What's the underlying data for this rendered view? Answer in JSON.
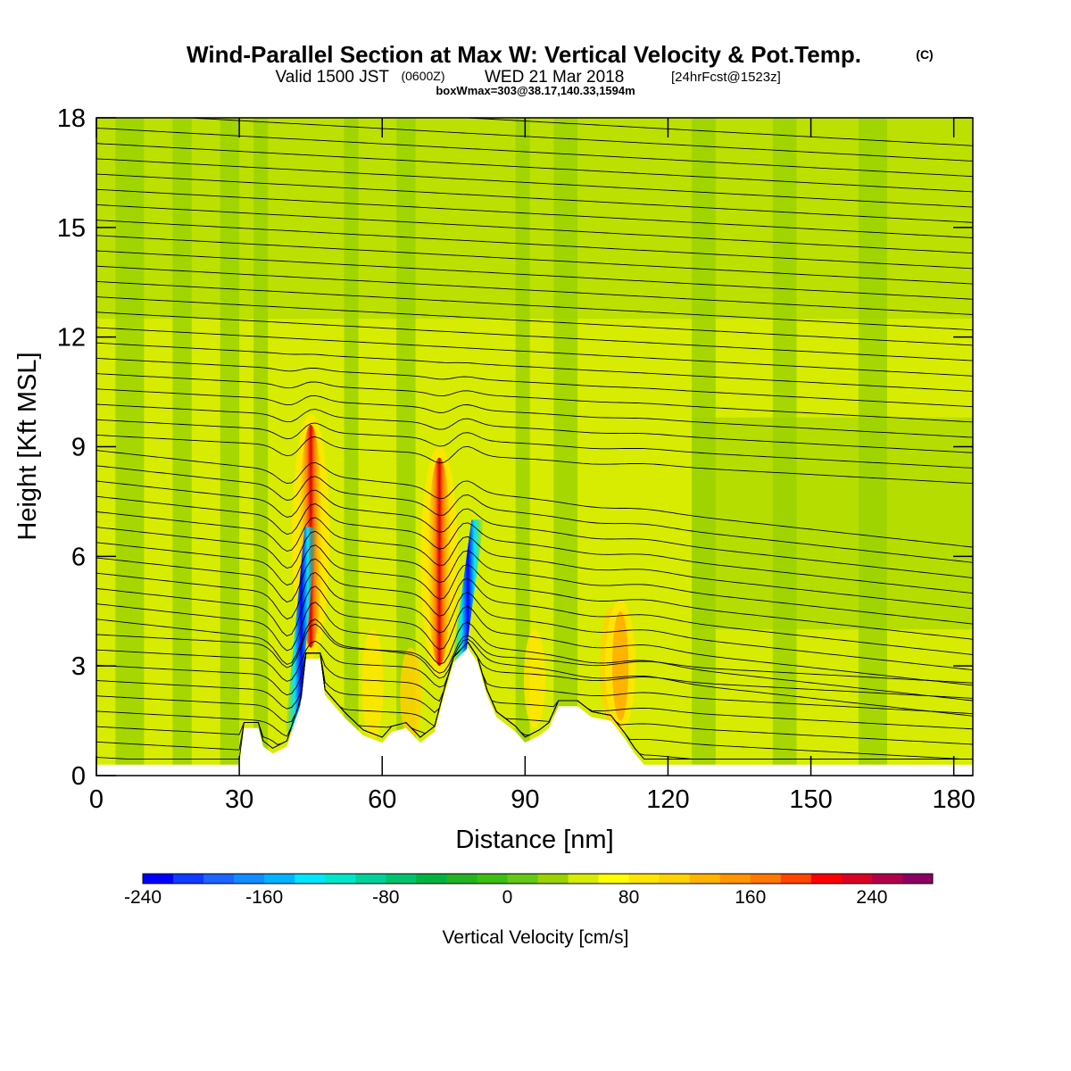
{
  "header": {
    "title": "Wind-Parallel Section at Max W: Vertical Velocity & Pot.Temp.",
    "copyright": "(C)",
    "valid_prefix": "Valid 1500 JST",
    "valid_utc": "(0600Z)",
    "valid_date": "WED 21 Mar 2018",
    "forecast_info": "[24hrFcst@1523z]",
    "box_info": "boxWmax=303@38.17,140.33,1594m"
  },
  "chart_data": {
    "type": "heatmap",
    "title": "Wind-Parallel Section at Max W: Vertical Velocity & Pot.Temp.",
    "xlabel": "Distance [nm]",
    "ylabel": "Height [Kft MSL]",
    "xlim": [
      0,
      184
    ],
    "ylim": [
      0,
      18
    ],
    "xticks": [
      0,
      30,
      60,
      90,
      120,
      150,
      180
    ],
    "yticks": [
      0,
      3,
      6,
      9,
      12,
      15,
      18
    ],
    "colorbar": {
      "label": "Vertical Velocity [cm/s]",
      "min": -240,
      "max": 280,
      "step": 20,
      "tick_values": [
        -240,
        -160,
        -80,
        0,
        80,
        160,
        240
      ],
      "colors": [
        "#0000ff",
        "#0f3cff",
        "#1e64ff",
        "#148cff",
        "#00b4ff",
        "#00e6ff",
        "#00e6c8",
        "#00d29b",
        "#00c36e",
        "#00b441",
        "#23b423",
        "#3cbe14",
        "#64c814",
        "#9bd200",
        "#d7ec00",
        "#ffff00",
        "#ffe600",
        "#ffd200",
        "#ffb400",
        "#ff9600",
        "#ff7800",
        "#ff4600",
        "#ff0000",
        "#dc0023",
        "#b4004b",
        "#8c0064"
      ]
    },
    "terrain_nm_kft": [
      [
        0,
        0.3
      ],
      [
        30,
        0.3
      ],
      [
        31,
        1.3
      ],
      [
        34,
        1.3
      ],
      [
        35,
        0.8
      ],
      [
        37,
        0.6
      ],
      [
        40,
        0.8
      ],
      [
        43,
        2.0
      ],
      [
        44,
        3.2
      ],
      [
        47,
        3.2
      ],
      [
        48,
        2.2
      ],
      [
        52,
        1.6
      ],
      [
        56,
        1.1
      ],
      [
        60,
        0.9
      ],
      [
        62,
        1.2
      ],
      [
        65,
        1.3
      ],
      [
        68,
        0.9
      ],
      [
        71,
        1.2
      ],
      [
        73,
        2.2
      ],
      [
        75,
        3.1
      ],
      [
        78,
        3.5
      ],
      [
        80,
        3.1
      ],
      [
        82,
        2.2
      ],
      [
        84,
        1.6
      ],
      [
        88,
        1.2
      ],
      [
        90,
        0.9
      ],
      [
        93,
        1.1
      ],
      [
        95,
        1.3
      ],
      [
        97,
        1.9
      ],
      [
        101,
        1.9
      ],
      [
        104,
        1.6
      ],
      [
        108,
        1.5
      ],
      [
        111,
        1.0
      ],
      [
        113,
        0.6
      ],
      [
        115,
        0.3
      ],
      [
        184,
        0.3
      ]
    ],
    "updraft_cores": [
      {
        "x_nm": 45,
        "y_base_kft": 3.5,
        "y_top_kft": 9.6,
        "w_cm_s": 180
      },
      {
        "x_nm": 72,
        "y_base_kft": 3.0,
        "y_top_kft": 8.7,
        "w_cm_s": 303
      },
      {
        "x_nm": 110,
        "y_base_kft": 1.5,
        "y_top_kft": 4.5,
        "w_cm_s": 60
      }
    ],
    "downdraft_cores": [
      {
        "x_nm": 43,
        "y_base_kft": 1.2,
        "y_top_kft": 6.8,
        "w_cm_s": -240
      },
      {
        "x_nm": 78,
        "y_base_kft": 3.0,
        "y_top_kft": 7.0,
        "w_cm_s": -180
      }
    ]
  }
}
